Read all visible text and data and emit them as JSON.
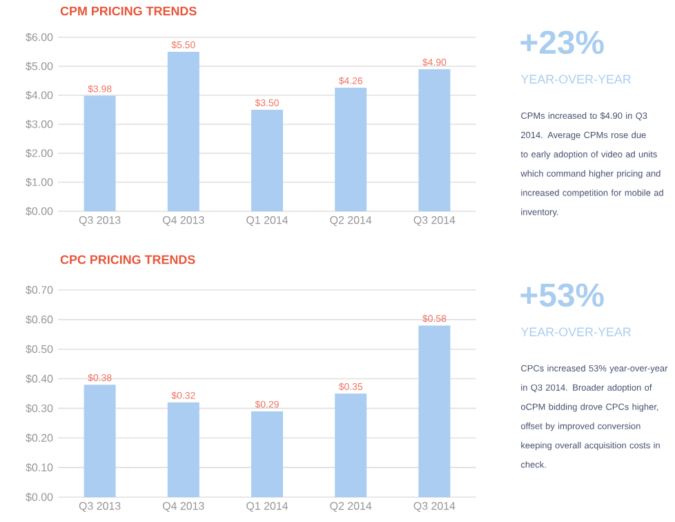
{
  "chart_data": [
    {
      "type": "bar",
      "title": "CPM PRICING TRENDS",
      "categories": [
        "Q3 2013",
        "Q4 2013",
        "Q1 2014",
        "Q2 2014",
        "Q3 2014"
      ],
      "values": [
        3.98,
        5.5,
        3.5,
        4.26,
        4.9
      ],
      "value_labels": [
        "$3.98",
        "$5.50",
        "$3.50",
        "$4.26",
        "$4.90"
      ],
      "color": "#aacdf1",
      "ylim": [
        0,
        6
      ],
      "yticks": [
        {
          "value": 0,
          "label": "$0.00"
        },
        {
          "value": 1,
          "label": "$1.00"
        },
        {
          "value": 2,
          "label": "$2.00"
        },
        {
          "value": 3,
          "label": "$3.00"
        },
        {
          "value": 4,
          "label": "$4.00"
        },
        {
          "value": 5,
          "label": "$5.00"
        },
        {
          "value": 6,
          "label": "$6.00"
        }
      ],
      "grid": "y",
      "annotations": [
        "+23%",
        "YEAR-OVER-YEAR",
        "CPMs increased to $4.90 in Q3 2014. Average CPMs rose due to early adoption of video ad units which command higher pricing and increased competition for mobile ad inventory."
      ]
    },
    {
      "type": "bar",
      "title": "CPC PRICING TRENDS",
      "categories": [
        "Q3 2013",
        "Q4 2013",
        "Q1 2014",
        "Q2 2014",
        "Q3 2014"
      ],
      "values": [
        0.38,
        0.32,
        0.29,
        0.35,
        0.58
      ],
      "value_labels": [
        "$0.38",
        "$0.32",
        "$0.29",
        "$0.35",
        "$0.58"
      ],
      "color": "#aacdf1",
      "ylim": [
        0,
        0.7
      ],
      "yticks": [
        {
          "value": 0,
          "label": "$0.00"
        },
        {
          "value": 0.1,
          "label": "$0.10"
        },
        {
          "value": 0.2,
          "label": "$0.20"
        },
        {
          "value": 0.3,
          "label": "$0.30"
        },
        {
          "value": 0.4,
          "label": "$0.40"
        },
        {
          "value": 0.5,
          "label": "$0.50"
        },
        {
          "value": 0.6,
          "label": "$0.60"
        },
        {
          "value": 0.7,
          "label": "$0.70"
        }
      ],
      "grid": "y",
      "annotations": [
        "+53%",
        "YEAR-OVER-YEAR",
        "CPCs increased 53% year-over-year in Q3 2014. Broader adoption of oCPM bidding drove CPCs higher, offset by improved conversion keeping overall acquisition costs in check."
      ]
    }
  ]
}
